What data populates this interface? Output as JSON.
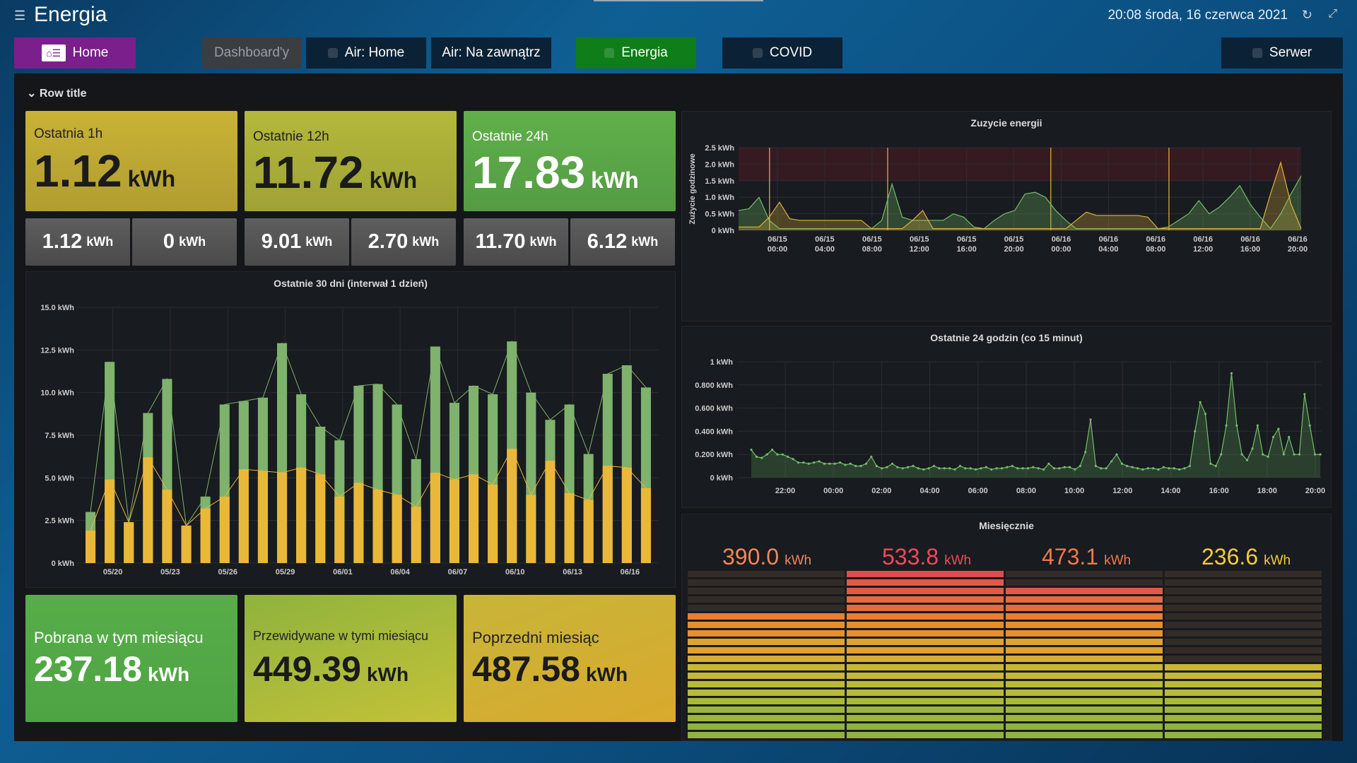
{
  "header": {
    "title": "Energia",
    "clock": "20:08 środa, 16 czerwca 2021"
  },
  "nav": [
    {
      "label": "Home",
      "bg": "#7b1f8c",
      "color": "#ffffff"
    },
    {
      "label": "Dashboard'y",
      "bg": "#3a3d42",
      "color": "#9aa0a6"
    },
    {
      "label": "Air: Home",
      "bg": "#0b2236",
      "color": "#ffffff"
    },
    {
      "label": "Air: Na zawnątrz",
      "bg": "#0b2236",
      "color": "#ffffff"
    },
    {
      "label": "Energia",
      "bg": "#0f7d19",
      "color": "#ffffff"
    },
    {
      "label": "COVID",
      "bg": "#0b2236",
      "color": "#ffffff"
    },
    {
      "label": "Serwer",
      "bg": "#0b2236",
      "color": "#ffffff"
    }
  ],
  "row_title": "Row title",
  "stats_top": [
    {
      "label": "Ostatnia 1h",
      "value": "1.12",
      "unit": "kWh",
      "color": "#c9b235"
    },
    {
      "label": "Ostatnie 12h",
      "value": "11.72",
      "unit": "kWh",
      "color": "#b4b83a"
    },
    {
      "label": "Ostatnie 24h",
      "value": "17.83",
      "unit": "kWh",
      "color": "#5fb04a"
    }
  ],
  "stats_small": [
    {
      "value": "1.12",
      "unit": "kWh"
    },
    {
      "value": "0",
      "unit": "kWh"
    },
    {
      "value": "9.01",
      "unit": "kWh"
    },
    {
      "value": "2.70",
      "unit": "kWh"
    },
    {
      "value": "11.70",
      "unit": "kWh"
    },
    {
      "value": "6.12",
      "unit": "kWh"
    }
  ],
  "stats_bottom": [
    {
      "label": "Pobrana w tym miesiącu",
      "value": "237.18",
      "unit": "kWh"
    },
    {
      "label": "Przewidywane w tymi miesiącu",
      "value": "449.39",
      "unit": "kWh"
    },
    {
      "label": "Poprzedni miesiąc",
      "value": "487.58",
      "unit": "kWh"
    }
  ],
  "monthly": {
    "title": "Miesięcznie",
    "values": [
      {
        "value": "390.0",
        "unit": "kWh",
        "color": "#f2865a",
        "fill": 0.73
      },
      {
        "value": "533.8",
        "unit": "kWh",
        "color": "#f2495c",
        "fill": 1.0
      },
      {
        "value": "473.1",
        "unit": "kWh",
        "color": "#f2784b",
        "fill": 0.89
      },
      {
        "value": "236.6",
        "unit": "kWh",
        "color": "#f2cc3a",
        "fill": 0.44
      }
    ]
  },
  "chart_data": [
    {
      "type": "bar",
      "title": "Ostatnie 30 dni (interwał 1 dzień)",
      "ylim": [
        0,
        15
      ],
      "y_ticks": [
        "0 kWh",
        "2.5 kWh",
        "5.0 kWh",
        "7.5 kWh",
        "10.0 kWh",
        "12.5 kWh",
        "15.0 kWh"
      ],
      "x_ticks": [
        "05/20",
        "05/23",
        "05/26",
        "05/29",
        "06/01",
        "06/04",
        "06/07",
        "06/10",
        "06/13",
        "06/16"
      ],
      "series": [
        {
          "name": "",
          "values": [
            3.0,
            11.8,
            2.4,
            8.8,
            10.8,
            2.2,
            3.9,
            9.3,
            9.5,
            9.7,
            12.9,
            9.9,
            8.0,
            7.2,
            10.4,
            10.5,
            9.3,
            6.1,
            12.7,
            9.4,
            10.4,
            9.9,
            13.0,
            10.0,
            8.4,
            9.3,
            6.4,
            11.1,
            11.6,
            10.3
          ]
        },
        {
          "name": "",
          "values": [
            1.9,
            4.9,
            2.4,
            6.2,
            4.3,
            2.2,
            3.2,
            3.9,
            5.5,
            5.4,
            5.3,
            5.6,
            5.2,
            3.9,
            4.7,
            4.3,
            4.0,
            3.3,
            5.3,
            4.9,
            5.2,
            4.6,
            6.7,
            4.0,
            6.0,
            4.1,
            3.7,
            5.7,
            5.6,
            4.4
          ]
        }
      ]
    },
    {
      "type": "area",
      "title": "Zuzycie energii",
      "ylabel": "Zużycie godzinowe",
      "ylim": [
        0,
        2.5
      ],
      "y_ticks": [
        "0 kWh",
        "0.5 kWh",
        "1.0 kWh",
        "1.5 kWh",
        "2.0 kWh",
        "2.5 kWh"
      ],
      "x_ticks": [
        [
          "06/15",
          "00:00"
        ],
        [
          "06/15",
          "04:00"
        ],
        [
          "06/15",
          "08:00"
        ],
        [
          "06/15",
          "12:00"
        ],
        [
          "06/15",
          "16:00"
        ],
        [
          "06/15",
          "20:00"
        ],
        [
          "06/16",
          "00:00"
        ],
        [
          "06/16",
          "04:00"
        ],
        [
          "06/16",
          "08:00"
        ],
        [
          "06/16",
          "12:00"
        ],
        [
          "06/16",
          "16:00"
        ],
        [
          "06/16",
          "20:00"
        ]
      ],
      "threshold": 1.5,
      "series": [
        {
          "name": "",
          "color": "#73bf69",
          "values": [
            0.6,
            0.65,
            1.0,
            0.3,
            0.05,
            0.05,
            0.05,
            0.05,
            0.05,
            0.05,
            0.05,
            0.05,
            0.05,
            0.05,
            0.3,
            1.4,
            0.4,
            0.3,
            0.3,
            0.3,
            0.3,
            0.5,
            0.4,
            0.1,
            0.05,
            0.3,
            0.5,
            0.6,
            1.1,
            1.15,
            1.0,
            0.6,
            0.3,
            0.05,
            0.05,
            0.05,
            0.05,
            0.05,
            0.05,
            0.05,
            0.05,
            0.05,
            0.1,
            0.3,
            0.5,
            0.9,
            0.5,
            0.7,
            1.0,
            1.35,
            0.8,
            0.4,
            0.05,
            0.5,
            1.1,
            1.65
          ]
        },
        {
          "name": "",
          "color": "#e0b33a",
          "values": [
            0.1,
            0.1,
            0.1,
            0.4,
            0.85,
            0.35,
            0.3,
            0.3,
            0.3,
            0.3,
            0.3,
            0.3,
            0.3,
            0.05,
            0.05,
            0.05,
            0.05,
            0.3,
            0.6,
            0.05,
            0.05,
            0.05,
            0.05,
            0.05,
            0.05,
            0.05,
            0.05,
            0.05,
            0.05,
            0.05,
            0.05,
            0.05,
            0.05,
            0.3,
            0.55,
            0.45,
            0.45,
            0.45,
            0.45,
            0.45,
            0.4,
            0.05,
            0.05,
            0.05,
            0.05,
            0.05,
            0.05,
            0.05,
            0.05,
            0.05,
            0.05,
            0.05,
            1.1,
            2.05,
            0.8,
            0.05
          ]
        }
      ],
      "vlines": [
        0.055,
        0.265,
        0.555,
        0.765
      ]
    },
    {
      "type": "line",
      "title": "Ostatnie 24 godzin (co 15 minut)",
      "ylim": [
        0,
        1.0
      ],
      "y_ticks": [
        "0 kWh",
        "0.200 kWh",
        "0.400 kWh",
        "0.600 kWh",
        "0.800 kWh",
        "1 kWh"
      ],
      "x_ticks": [
        "22:00",
        "00:00",
        "02:00",
        "04:00",
        "06:00",
        "08:00",
        "10:00",
        "12:00",
        "14:00",
        "16:00",
        "18:00",
        "20:00"
      ],
      "series": [
        {
          "name": "",
          "color": "#73bf69",
          "values": [
            0.24,
            0.18,
            0.17,
            0.2,
            0.24,
            0.2,
            0.2,
            0.18,
            0.16,
            0.13,
            0.13,
            0.12,
            0.13,
            0.14,
            0.12,
            0.12,
            0.12,
            0.13,
            0.11,
            0.12,
            0.1,
            0.1,
            0.12,
            0.18,
            0.1,
            0.08,
            0.09,
            0.12,
            0.09,
            0.08,
            0.09,
            0.1,
            0.08,
            0.07,
            0.08,
            0.1,
            0.08,
            0.08,
            0.08,
            0.07,
            0.1,
            0.08,
            0.08,
            0.07,
            0.08,
            0.09,
            0.07,
            0.08,
            0.08,
            0.09,
            0.1,
            0.08,
            0.08,
            0.08,
            0.09,
            0.08,
            0.07,
            0.12,
            0.08,
            0.08,
            0.09,
            0.09,
            0.07,
            0.1,
            0.22,
            0.5,
            0.1,
            0.08,
            0.08,
            0.14,
            0.2,
            0.12,
            0.1,
            0.09,
            0.08,
            0.07,
            0.08,
            0.08,
            0.07,
            0.09,
            0.08,
            0.08,
            0.07,
            0.08,
            0.1,
            0.4,
            0.65,
            0.55,
            0.12,
            0.1,
            0.2,
            0.45,
            0.9,
            0.45,
            0.2,
            0.15,
            0.25,
            0.45,
            0.2,
            0.18,
            0.35,
            0.42,
            0.2,
            0.35,
            0.2,
            0.2,
            0.72,
            0.45,
            0.2,
            0.2
          ]
        }
      ]
    }
  ]
}
